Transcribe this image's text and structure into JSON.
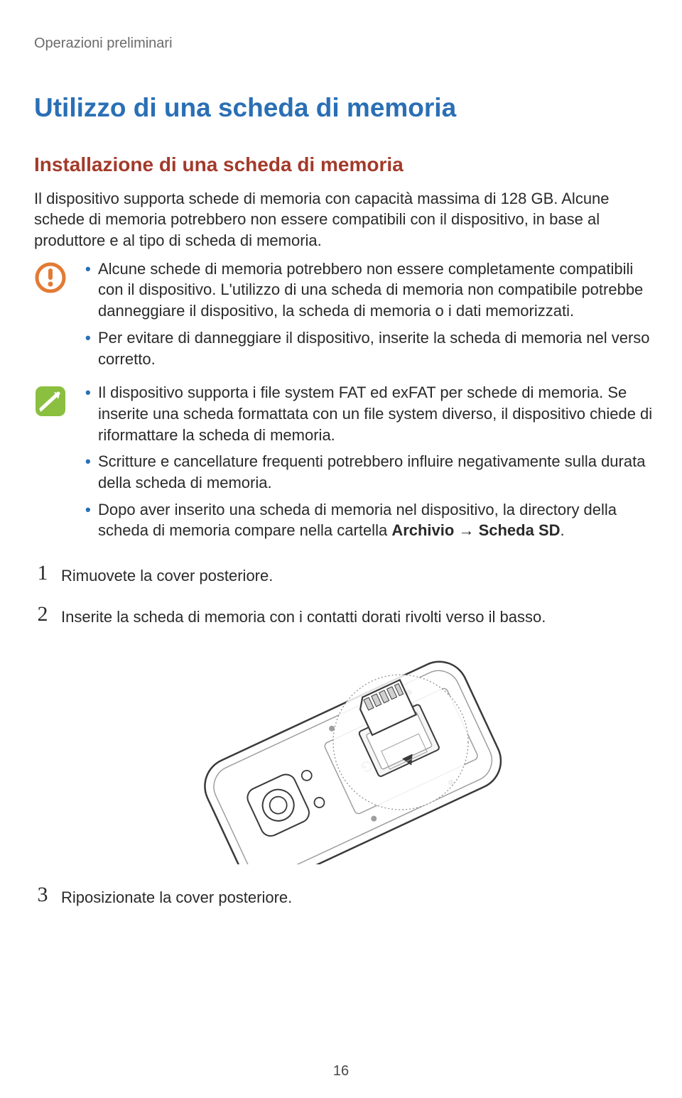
{
  "breadcrumb": "Operazioni preliminari",
  "h1": "Utilizzo di una scheda di memoria",
  "h2": "Installazione di una scheda di memoria",
  "intro": "Il dispositivo supporta schede di memoria con capacità massima di 128 GB. Alcune schede di memoria potrebbero non essere compatibili con il dispositivo, in base al produttore e al tipo di scheda di memoria.",
  "caution": {
    "items": [
      "Alcune schede di memoria potrebbero non essere completamente compatibili con il dispositivo. L'utilizzo di una scheda di memoria non compatibile potrebbe danneggiare il dispositivo, la scheda di memoria o i dati memorizzati.",
      "Per evitare di danneggiare il dispositivo, inserite la scheda di memoria nel verso corretto."
    ]
  },
  "info": {
    "items": [
      {
        "parts": [
          {
            "type": "text",
            "value": "Il dispositivo supporta i file system FAT ed exFAT per schede di memoria. Se inserite una scheda formattata con un file system diverso, il dispositivo chiede di riformattare la scheda di memoria."
          }
        ]
      },
      {
        "parts": [
          {
            "type": "text",
            "value": "Scritture e cancellature frequenti potrebbero influire negativamente sulla durata della scheda di memoria."
          }
        ]
      },
      {
        "parts": [
          {
            "type": "text",
            "value": "Dopo aver inserito una scheda di memoria nel dispositivo, la directory della scheda di memoria compare nella cartella "
          },
          {
            "type": "bold",
            "value": "Archivio"
          },
          {
            "type": "arrow",
            "value": " → "
          },
          {
            "type": "bold",
            "value": "Scheda SD"
          },
          {
            "type": "text",
            "value": "."
          }
        ]
      }
    ]
  },
  "steps": {
    "1": "Rimuovete la cover posteriore.",
    "2": "Inserite la scheda di memoria con i contatti dorati rivolti verso il basso.",
    "3": "Riposizionate la cover posteriore."
  },
  "page_number": "16",
  "icons": {
    "caution_stroke": "#e37a34",
    "caution_fill": "#ffffff",
    "info_bg": "#8bbf3f",
    "info_stroke": "#ffffff"
  },
  "illus_style": {
    "stroke": "#3a3a3a",
    "light": "#9e9e9e",
    "circle_stroke": "#8a8a8a",
    "bg": "#ffffff"
  }
}
